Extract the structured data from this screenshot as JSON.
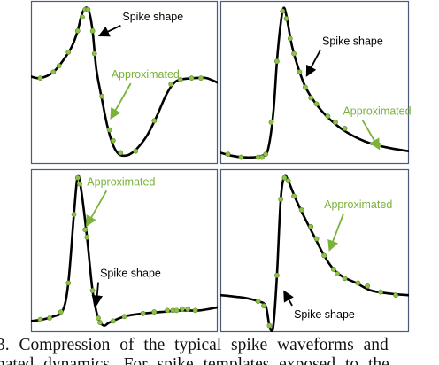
{
  "colors": {
    "waveform": "#000000",
    "sample_point": "#8fc04a",
    "sample_point_stroke": "#5c8a23",
    "approx_label": "#7ab23a",
    "frame": "#4a5b7a"
  },
  "caption": {
    "line1": "3.  Compression  of  the  typical  spike  waveforms  and",
    "line2": "nated  dynamics.  For  spike  templates  exposed  to  the"
  },
  "chart_data": [
    {
      "type": "line",
      "panel": "top-left",
      "annotations": [
        {
          "text": "Spike shape",
          "kind": "spike",
          "tx": 0.49,
          "ty": 0.92,
          "ax": 0.37,
          "ay": 0.82
        },
        {
          "text": "Approximated",
          "kind": "approx",
          "tx": 0.43,
          "ty": 0.54,
          "ax": 0.43,
          "ay": 0.28
        }
      ],
      "waveform": [
        [
          0.0,
          0.55
        ],
        [
          0.05,
          0.54
        ],
        [
          0.12,
          0.58
        ],
        [
          0.18,
          0.67
        ],
        [
          0.22,
          0.75
        ],
        [
          0.25,
          0.85
        ],
        [
          0.27,
          0.95
        ],
        [
          0.29,
          1.0
        ],
        [
          0.31,
          0.98
        ],
        [
          0.33,
          0.85
        ],
        [
          0.35,
          0.6
        ],
        [
          0.38,
          0.4
        ],
        [
          0.41,
          0.22
        ],
        [
          0.44,
          0.1
        ],
        [
          0.47,
          0.04
        ],
        [
          0.5,
          0.03
        ],
        [
          0.53,
          0.04
        ],
        [
          0.57,
          0.08
        ],
        [
          0.62,
          0.16
        ],
        [
          0.67,
          0.28
        ],
        [
          0.72,
          0.42
        ],
        [
          0.76,
          0.5
        ],
        [
          0.8,
          0.53
        ],
        [
          0.88,
          0.54
        ],
        [
          0.94,
          0.54
        ],
        [
          1.0,
          0.51
        ]
      ],
      "samples": [
        [
          0.05,
          0.54
        ],
        [
          0.12,
          0.58
        ],
        [
          0.15,
          0.62
        ],
        [
          0.2,
          0.71
        ],
        [
          0.25,
          0.85
        ],
        [
          0.275,
          0.94
        ],
        [
          0.29,
          0.99
        ],
        [
          0.305,
          0.99
        ],
        [
          0.33,
          0.85
        ],
        [
          0.34,
          0.7
        ],
        [
          0.38,
          0.42
        ],
        [
          0.42,
          0.2
        ],
        [
          0.44,
          0.13
        ],
        [
          0.48,
          0.05
        ],
        [
          0.56,
          0.06
        ],
        [
          0.66,
          0.26
        ],
        [
          0.75,
          0.5
        ],
        [
          0.8,
          0.53
        ],
        [
          0.86,
          0.54
        ],
        [
          0.91,
          0.54
        ]
      ]
    },
    {
      "type": "line",
      "panel": "top-right",
      "annotations": [
        {
          "text": "Spike shape",
          "kind": "spike",
          "tx": 0.54,
          "ty": 0.76,
          "ax": 0.46,
          "ay": 0.56
        },
        {
          "text": "Approximated",
          "kind": "approx",
          "tx": 0.65,
          "ty": 0.3,
          "ax": 0.84,
          "ay": 0.08
        }
      ],
      "waveform": [
        [
          0.0,
          0.05
        ],
        [
          0.06,
          0.03
        ],
        [
          0.12,
          0.02
        ],
        [
          0.18,
          0.02
        ],
        [
          0.22,
          0.03
        ],
        [
          0.25,
          0.06
        ],
        [
          0.28,
          0.3
        ],
        [
          0.3,
          0.65
        ],
        [
          0.32,
          0.9
        ],
        [
          0.335,
          1.0
        ],
        [
          0.35,
          0.95
        ],
        [
          0.38,
          0.75
        ],
        [
          0.42,
          0.58
        ],
        [
          0.46,
          0.46
        ],
        [
          0.52,
          0.35
        ],
        [
          0.58,
          0.27
        ],
        [
          0.65,
          0.2
        ],
        [
          0.72,
          0.15
        ],
        [
          0.8,
          0.11
        ],
        [
          0.9,
          0.08
        ],
        [
          1.0,
          0.06
        ]
      ],
      "samples": [
        [
          0.04,
          0.04
        ],
        [
          0.11,
          0.02
        ],
        [
          0.2,
          0.02
        ],
        [
          0.22,
          0.02
        ],
        [
          0.24,
          0.04
        ],
        [
          0.27,
          0.25
        ],
        [
          0.3,
          0.65
        ],
        [
          0.33,
          0.98
        ],
        [
          0.35,
          0.93
        ],
        [
          0.37,
          0.8
        ],
        [
          0.39,
          0.7
        ],
        [
          0.42,
          0.58
        ],
        [
          0.45,
          0.48
        ],
        [
          0.48,
          0.41
        ],
        [
          0.51,
          0.37
        ],
        [
          0.57,
          0.29
        ],
        [
          0.61,
          0.25
        ],
        [
          0.66,
          0.21
        ],
        [
          0.84,
          0.1
        ]
      ]
    },
    {
      "type": "line",
      "panel": "bottom-left",
      "annotations": [
        {
          "text": "Approximated",
          "kind": "approx",
          "tx": 0.3,
          "ty": 0.94,
          "ax": 0.3,
          "ay": 0.68
        },
        {
          "text": "Spike shape",
          "kind": "spike",
          "tx": 0.37,
          "ty": 0.34,
          "ax": 0.35,
          "ay": 0.16
        }
      ],
      "waveform": [
        [
          0.0,
          0.05
        ],
        [
          0.06,
          0.06
        ],
        [
          0.12,
          0.08
        ],
        [
          0.17,
          0.12
        ],
        [
          0.2,
          0.3
        ],
        [
          0.23,
          0.75
        ],
        [
          0.25,
          1.0
        ],
        [
          0.27,
          0.9
        ],
        [
          0.3,
          0.6
        ],
        [
          0.33,
          0.25
        ],
        [
          0.36,
          0.07
        ],
        [
          0.39,
          0.02
        ],
        [
          0.42,
          0.04
        ],
        [
          0.5,
          0.08
        ],
        [
          0.6,
          0.1
        ],
        [
          0.7,
          0.11
        ],
        [
          0.8,
          0.12
        ],
        [
          0.9,
          0.12
        ],
        [
          1.0,
          0.14
        ]
      ],
      "samples": [
        [
          0.05,
          0.06
        ],
        [
          0.1,
          0.07
        ],
        [
          0.16,
          0.11
        ],
        [
          0.2,
          0.3
        ],
        [
          0.23,
          0.75
        ],
        [
          0.25,
          0.99
        ],
        [
          0.26,
          0.95
        ],
        [
          0.29,
          0.65
        ],
        [
          0.3,
          0.6
        ],
        [
          0.33,
          0.25
        ],
        [
          0.36,
          0.07
        ],
        [
          0.37,
          0.04
        ],
        [
          0.44,
          0.05
        ],
        [
          0.5,
          0.08
        ],
        [
          0.6,
          0.1
        ],
        [
          0.66,
          0.11
        ],
        [
          0.73,
          0.12
        ],
        [
          0.76,
          0.12
        ],
        [
          0.78,
          0.12
        ],
        [
          0.81,
          0.13
        ],
        [
          0.84,
          0.13
        ],
        [
          0.88,
          0.12
        ]
      ]
    },
    {
      "type": "line",
      "panel": "bottom-right",
      "annotations": [
        {
          "text": "Approximated",
          "kind": "approx",
          "tx": 0.55,
          "ty": 0.79,
          "ax": 0.58,
          "ay": 0.52
        },
        {
          "text": "Spike shape",
          "kind": "spike",
          "tx": 0.39,
          "ty": 0.07,
          "ax": 0.34,
          "ay": 0.24
        }
      ],
      "waveform": [
        [
          0.0,
          0.22
        ],
        [
          0.08,
          0.21
        ],
        [
          0.14,
          0.2
        ],
        [
          0.2,
          0.18
        ],
        [
          0.24,
          0.15
        ],
        [
          0.26,
          0.02
        ],
        [
          0.28,
          0.01
        ],
        [
          0.3,
          0.35
        ],
        [
          0.32,
          0.85
        ],
        [
          0.34,
          1.0
        ],
        [
          0.36,
          0.97
        ],
        [
          0.4,
          0.85
        ],
        [
          0.45,
          0.72
        ],
        [
          0.5,
          0.6
        ],
        [
          0.55,
          0.48
        ],
        [
          0.6,
          0.39
        ],
        [
          0.65,
          0.34
        ],
        [
          0.72,
          0.3
        ],
        [
          0.8,
          0.25
        ],
        [
          0.9,
          0.23
        ],
        [
          1.0,
          0.22
        ]
      ],
      "samples": [
        [
          0.2,
          0.18
        ],
        [
          0.23,
          0.15
        ],
        [
          0.26,
          0.02
        ],
        [
          0.3,
          0.35
        ],
        [
          0.32,
          0.85
        ],
        [
          0.34,
          0.99
        ],
        [
          0.36,
          0.97
        ],
        [
          0.39,
          0.87
        ],
        [
          0.43,
          0.78
        ],
        [
          0.48,
          0.67
        ],
        [
          0.51,
          0.59
        ],
        [
          0.55,
          0.48
        ],
        [
          0.6,
          0.39
        ],
        [
          0.62,
          0.36
        ],
        [
          0.66,
          0.33
        ],
        [
          0.73,
          0.3
        ],
        [
          0.78,
          0.28
        ],
        [
          0.85,
          0.24
        ],
        [
          0.93,
          0.22
        ]
      ]
    }
  ]
}
